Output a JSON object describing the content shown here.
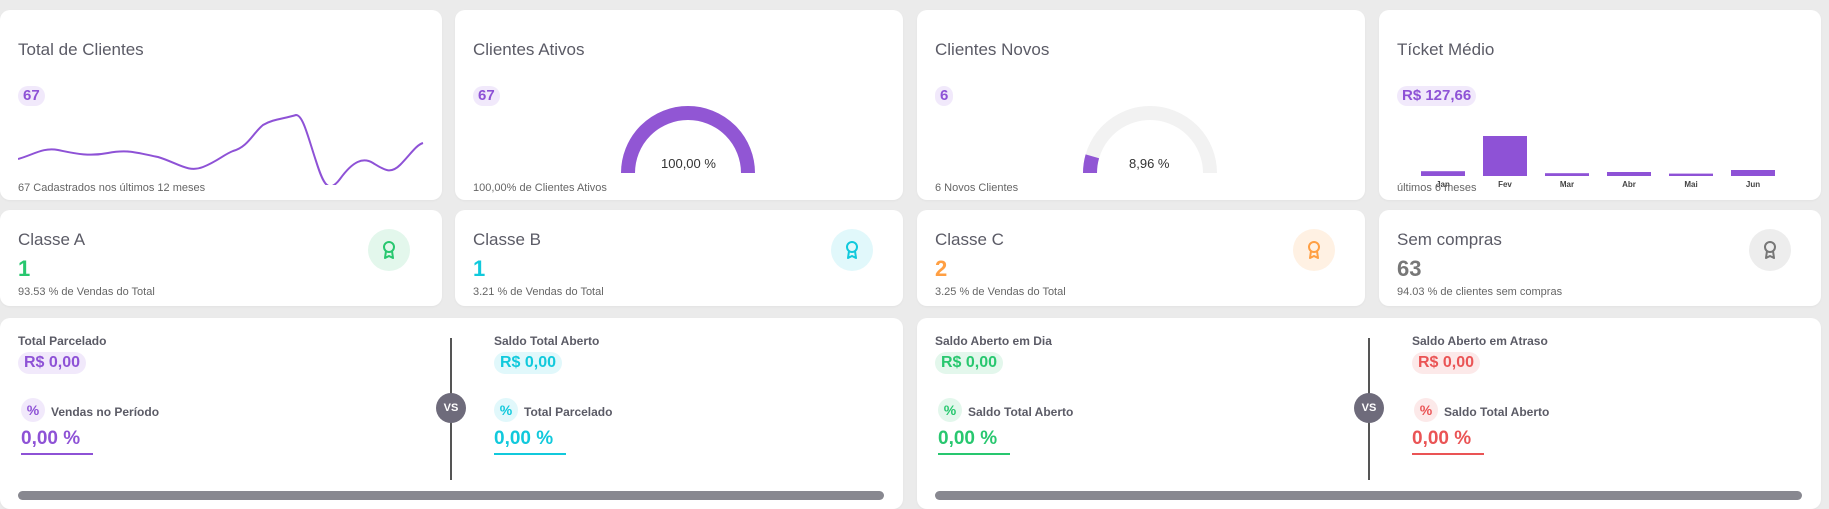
{
  "kpis": {
    "total_clientes": {
      "title": "Total de Clientes",
      "value": "67",
      "footnote": "67 Cadastrados nos últimos 12 meses"
    },
    "clientes_ativos": {
      "title": "Clientes Ativos",
      "value": "67",
      "gauge_label": "100,00 %",
      "gauge_fraction": 1.0,
      "footnote": "100,00% de Clientes Ativos"
    },
    "clientes_novos": {
      "title": "Clientes Novos",
      "value": "6",
      "gauge_label": "8,96 %",
      "gauge_fraction": 0.0896,
      "footnote": "6 Novos Clientes"
    },
    "ticket_medio": {
      "title": "Tícket Médio",
      "value": "R$ 127,66",
      "footnote": "últimos 6 meses"
    }
  },
  "chart_data": {
    "type": "bar",
    "categories": [
      "Jan",
      "Fev",
      "Mar",
      "Abr",
      "Mai",
      "Jun"
    ],
    "values": [
      12,
      100,
      7,
      10,
      6,
      15
    ]
  },
  "classes": [
    {
      "title": "Classe A",
      "value": "1",
      "note": "93.53 % de Vendas do Total",
      "color": "#28c76f",
      "icon": "award-icon"
    },
    {
      "title": "Classe B",
      "value": "1",
      "note": "3.21 % de Vendas do Total",
      "color": "#11c9dc",
      "icon": "award-icon"
    },
    {
      "title": "Classe C",
      "value": "2",
      "note": "3.25 % de Vendas do Total",
      "color": "#ff9f43",
      "icon": "award-icon"
    },
    {
      "title": "Sem compras",
      "value": "63",
      "note": "94.03 % de clientes sem compras",
      "color": "#777777",
      "icon": "award-icon"
    }
  ],
  "comparisons": {
    "left": {
      "a": {
        "label": "Total Parcelado",
        "value": "R$ 0,00",
        "pct_label": "Vendas no Período",
        "pct_value": "0,00 %"
      },
      "vs": "VS",
      "b": {
        "label": "Saldo Total Aberto",
        "value": "R$ 0,00",
        "pct_label": "Total Parcelado",
        "pct_value": "0,00 %"
      }
    },
    "right": {
      "a": {
        "label": "Saldo Aberto em Dia",
        "value": "R$ 0,00",
        "pct_label": "Saldo Total Aberto",
        "pct_value": "0,00 %"
      },
      "vs": "VS",
      "b": {
        "label": "Saldo Aberto em Atraso",
        "value": "R$ 0,00",
        "pct_label": "Saldo Total Aberto",
        "pct_value": "0,00 %"
      }
    }
  },
  "pct_symbol": "%"
}
